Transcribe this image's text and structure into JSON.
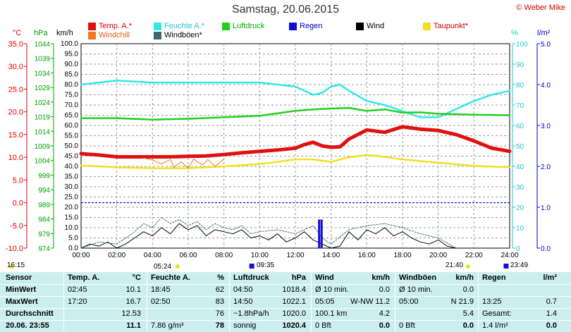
{
  "title": "Samstag, 20.06.2015",
  "copyright": "© Weber Mike",
  "legend": [
    {
      "label": "Temp. A.*",
      "color": "#e01010"
    },
    {
      "label": "Feuchte A.*",
      "color": "#30e8e8"
    },
    {
      "label": "Luftdruck",
      "color": "#20d020"
    },
    {
      "label": "Regen",
      "color": "#1010d0"
    },
    {
      "label": "Wind",
      "color": "#000000"
    },
    {
      "label": "Taupunkt*",
      "color": "#f0e020"
    },
    {
      "label": "Windchill",
      "color": "#f07820"
    },
    {
      "label": "Windböen*",
      "color": "#406868"
    }
  ],
  "axis_units": {
    "temp": "°C",
    "press": "hPa",
    "wind": "km/h",
    "hum": "%",
    "rain": "l/m²"
  },
  "below_axis": {
    "left_time": "16:15",
    "sunrise": "05:24",
    "mid_time": "09:35",
    "sunset": "21:40",
    "right_time": "23:49"
  },
  "chart_data": {
    "type": "line",
    "x_ticks": [
      "00:00",
      "02:00",
      "04:00",
      "06:00",
      "08:00",
      "10:00",
      "12:00",
      "14:00",
      "16:00",
      "18:00",
      "20:00",
      "22:00",
      "24:00"
    ],
    "wind_axis": {
      "range": [
        0,
        100
      ],
      "ticks": [
        "0.0",
        "5.0",
        "10.0",
        "15.0",
        "20.0",
        "25.0",
        "30.0",
        "35.0",
        "40.0",
        "45.0",
        "50.0",
        "55.0",
        "60.0",
        "65.0",
        "70.0",
        "75.0",
        "80.0",
        "85.0",
        "90.0",
        "95.0",
        "100.0"
      ]
    },
    "temp_axis": {
      "range": [
        -10,
        35
      ],
      "ticks": [
        "-10.0",
        "-5.0",
        "0.0",
        "5.0",
        "10.0",
        "15.0",
        "20.0",
        "25.0",
        "30.0",
        "35.0"
      ]
    },
    "press_axis": {
      "range": [
        974,
        1044
      ],
      "ticks": [
        "974",
        "979",
        "984",
        "989",
        "994",
        "999",
        "1004",
        "1009",
        "1014",
        "1019",
        "1024",
        "1029",
        "1034",
        "1039",
        "1044"
      ]
    },
    "hum_axis": {
      "range": [
        0,
        100
      ],
      "ticks": [
        "0",
        "10",
        "20",
        "30",
        "40",
        "50",
        "60",
        "70",
        "80",
        "90",
        "100"
      ]
    },
    "rain_axis": {
      "range": [
        0,
        5
      ],
      "ticks": [
        "0.0",
        "1.0",
        "2.0",
        "3.0",
        "4.0",
        "5.0"
      ]
    },
    "series": [
      {
        "name": "Feuchte A.*",
        "color": "#30e8e8",
        "axis": "hum",
        "x": [
          0,
          2,
          4,
          6,
          8,
          10,
          11,
          12,
          13,
          13.5,
          14,
          14.5,
          15,
          16,
          17,
          18,
          19,
          20,
          21,
          22,
          23,
          24
        ],
        "y": [
          80,
          82,
          81,
          81,
          81,
          81,
          80,
          79,
          75,
          76,
          79,
          80,
          77,
          72,
          70,
          67,
          64,
          64,
          68,
          72,
          75,
          77
        ]
      },
      {
        "name": "Luftdruck",
        "color": "#20d020",
        "axis": "press",
        "x": [
          0,
          2,
          4,
          6,
          8,
          10,
          12,
          13,
          14,
          15,
          16,
          17,
          18,
          19,
          20,
          22,
          24
        ],
        "y": [
          1018.5,
          1018.5,
          1018,
          1018.3,
          1018.8,
          1019.3,
          1021,
          1021.5,
          1021.8,
          1022,
          1021,
          1021.5,
          1020.4,
          1020.5,
          1020,
          1019.7,
          1019.5
        ]
      },
      {
        "name": "Temp. A.*",
        "color": "#e01010",
        "axis": "temp",
        "x": [
          0,
          1,
          2,
          3,
          4,
          5,
          6,
          7,
          8,
          9,
          10,
          11,
          12,
          12.5,
          13,
          13.5,
          14,
          14.5,
          15,
          16,
          17,
          18,
          19,
          20,
          21,
          22,
          23,
          24
        ],
        "y": [
          10.8,
          10.5,
          10.1,
          10.1,
          10.1,
          10.1,
          10.2,
          10.3,
          10.6,
          11,
          11.3,
          11.6,
          12,
          12.8,
          13.3,
          12.5,
          12.2,
          12.3,
          14,
          16,
          15.5,
          16.7,
          16.2,
          15.9,
          15,
          13.6,
          12,
          11.3
        ]
      },
      {
        "name": "Taupunkt*",
        "color": "#f0e020",
        "axis": "temp",
        "x": [
          0,
          2,
          4,
          6,
          8,
          10,
          12,
          13,
          14,
          15,
          16,
          17,
          18,
          20,
          22,
          24
        ],
        "y": [
          8.2,
          7.8,
          7.6,
          7.6,
          8,
          8.5,
          9.5,
          9.5,
          9,
          10,
          10.5,
          10.1,
          9.5,
          8.8,
          8.1,
          7.8
        ]
      },
      {
        "name": "Windchill",
        "color": "#f07820",
        "axis": "temp",
        "x": [
          3.5,
          4,
          4.5,
          5,
          5.2,
          5.6,
          6,
          6.3,
          6.8,
          7.1,
          7.5,
          8
        ],
        "y": [
          9.8,
          9.4,
          8.5,
          9.5,
          7.8,
          9,
          7.6,
          9.6,
          8.3,
          9.5,
          8,
          9.6
        ]
      },
      {
        "name": "Wind",
        "color": "#000000",
        "axis": "wind",
        "x": [
          0,
          0.5,
          1,
          1.5,
          2,
          2.5,
          3,
          3.5,
          4,
          4.5,
          5,
          5.5,
          6,
          6.5,
          7,
          7.5,
          8,
          8.5,
          9,
          9.5,
          10,
          10.5,
          11,
          11.5,
          12,
          12.5,
          13,
          13.5,
          14,
          14.5,
          15,
          15.5,
          16,
          16.5,
          17,
          17.5,
          18,
          18.5,
          19,
          19.5,
          20,
          20.5,
          21
        ],
        "y": [
          0,
          2,
          1,
          3,
          0,
          2,
          5,
          8,
          6,
          10,
          7,
          12,
          9,
          11,
          6,
          9,
          8,
          7,
          9,
          5,
          6,
          4,
          7,
          3,
          5,
          8,
          4,
          2,
          0,
          1,
          8,
          4,
          9,
          7,
          10,
          6,
          8,
          5,
          3,
          2,
          4,
          1,
          0
        ]
      },
      {
        "name": "Windböen*",
        "color": "#406868",
        "axis": "wind",
        "x": [
          0,
          1,
          2,
          3,
          3.5,
          4,
          4.5,
          5,
          5.5,
          6,
          6.5,
          7,
          7.5,
          8,
          8.5,
          9,
          9.5,
          10,
          11,
          12,
          13,
          13.5,
          14,
          15,
          16,
          17,
          18,
          19,
          20,
          21
        ],
        "y": [
          0,
          3,
          2,
          8,
          12,
          10,
          15,
          12,
          14,
          11,
          13,
          9,
          12,
          10,
          9,
          11,
          7,
          8,
          9,
          7,
          11,
          5,
          2,
          9,
          11,
          12,
          10,
          7,
          5,
          0
        ]
      }
    ],
    "rain_bars": [
      {
        "x": 13.33,
        "y": 0.7
      },
      {
        "x": 13.47,
        "y": 0.7
      }
    ]
  },
  "table": {
    "headers": [
      "Sensor",
      "Temp. A.",
      "°C",
      "Feuchte A.",
      "%",
      "Luftdruck",
      "hPa",
      "Wind",
      "km/h",
      "Windböen",
      "km/h",
      "Regen",
      "l/m²"
    ],
    "rows": [
      {
        "label": "MinWert",
        "temp_t": "02:45",
        "temp_v": "10.1",
        "hum_t": "18:45",
        "hum_v": "62",
        "press_t": "04:50",
        "press_v": "1018.4",
        "wind_t": "Ø 10 min.",
        "wind_v": "0.0",
        "gust_t": "Ø 10 min.",
        "gust_v": "0.0",
        "rain_t": "",
        "rain_v": ""
      },
      {
        "label": "MaxWert",
        "temp_t": "17:20",
        "temp_v": "16.7",
        "hum_t": "02:50",
        "hum_v": "83",
        "press_t": "14:50",
        "press_v": "1022.1",
        "wind_t": "05:05",
        "wind_m": "W-NW 11.2",
        "wind_v": "",
        "gust_t": "05:00",
        "gust_v": "N 21.9",
        "rain_t": "13:25",
        "rain_v": "0.7"
      },
      {
        "label": "Durchschnitt",
        "temp_t": "",
        "temp_v": "12.53",
        "hum_t": "",
        "hum_v": "76",
        "press_t": "~1.8hPa/h",
        "press_v": "1020.0",
        "wind_t": "100.1 km",
        "wind_v": "4.2",
        "gust_t": "",
        "gust_v": "5.4",
        "rain_t": "Gesamt:",
        "rain_v": "1.4"
      },
      {
        "label": "20.06. 23:55",
        "temp_t": "",
        "temp_v": "11.1",
        "hum_t": "7.86 g/m³",
        "hum_v": "78",
        "press_t": "sonnig",
        "press_v": "1020.4",
        "wind_t": "0 Bft",
        "wind_v": "0.0",
        "gust_t": "0 Bft",
        "gust_v": "0.0",
        "rain_t": "1.4 l/m²",
        "rain_v": "0.0"
      }
    ]
  }
}
